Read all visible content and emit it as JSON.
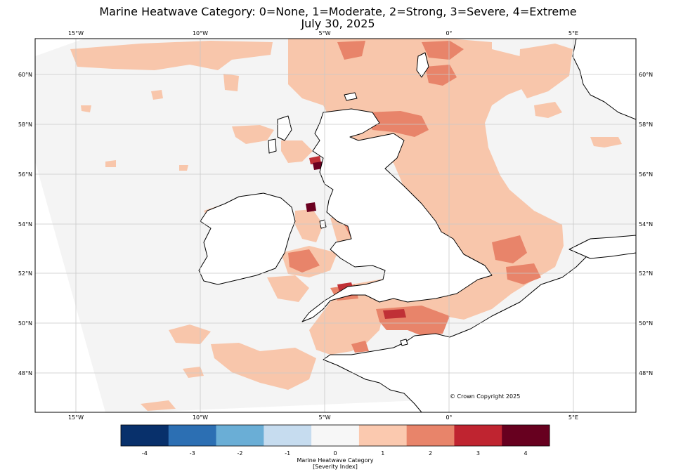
{
  "title_line1": "Marine Heatwave Category: 0=None, 1=Moderate, 2=Strong, 3=Severe, 4=Extreme",
  "title_line2": "July 30, 2025",
  "copyright": "© Crown Copyright 2025",
  "lon_labels": [
    "15°W",
    "10°W",
    "5°W",
    "0°",
    "5°E"
  ],
  "lat_labels": [
    "60°N",
    "58°N",
    "56°N",
    "54°N",
    "52°N",
    "50°N",
    "48°N"
  ],
  "colorbar": {
    "label_line1": "Marine Heatwave Category",
    "label_line2": "[Severity Index]",
    "ticks": [
      "-4",
      "-3",
      "-2",
      "-1",
      "0",
      "1",
      "2",
      "3",
      "4"
    ],
    "colors": [
      "#08306b",
      "#2c6fb3",
      "#6aaed6",
      "#c6dcef",
      "#f7f7f7",
      "#fbc9af",
      "#e8846a",
      "#bf2430",
      "#67001f"
    ]
  },
  "colors": {
    "none": "#f4f4f4",
    "moderate": "#f8c6ab",
    "strong": "#e8846a",
    "severe": "#c03036",
    "extreme": "#6b0020",
    "land": "#ffffff",
    "grid": "#c8c8c8"
  }
}
